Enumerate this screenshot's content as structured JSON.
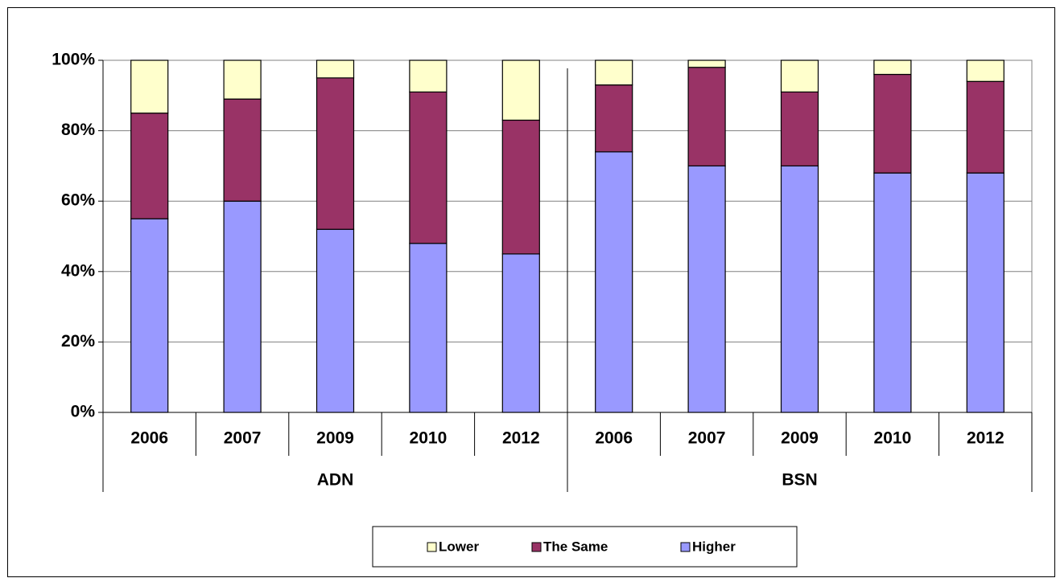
{
  "chart_data": {
    "type": "stacked-bar",
    "groups": [
      {
        "name": "ADN",
        "categories": [
          "2006",
          "2007",
          "2009",
          "2010",
          "2012"
        ]
      },
      {
        "name": "BSN",
        "categories": [
          "2006",
          "2007",
          "2009",
          "2010",
          "2012"
        ]
      }
    ],
    "series": [
      {
        "name": "Higher",
        "color": "#9999FF",
        "values": [
          55,
          60,
          52,
          48,
          45,
          74,
          70,
          70,
          68,
          68
        ]
      },
      {
        "name": "The Same",
        "color": "#993366",
        "values": [
          30,
          29,
          43,
          43,
          38,
          19,
          28,
          21,
          28,
          26
        ]
      },
      {
        "name": "Lower",
        "color": "#FFFFCC",
        "values": [
          15,
          11,
          5,
          9,
          17,
          7,
          2,
          9,
          4,
          6
        ]
      }
    ],
    "ylim": [
      0,
      100
    ],
    "yticks": [
      {
        "value": 0,
        "label": "0%"
      },
      {
        "value": 20,
        "label": "20%"
      },
      {
        "value": 40,
        "label": "40%"
      },
      {
        "value": 60,
        "label": "60%"
      },
      {
        "value": 80,
        "label": "80%"
      },
      {
        "value": 100,
        "label": "100%"
      }
    ],
    "grid": true,
    "legend": "bottom"
  }
}
